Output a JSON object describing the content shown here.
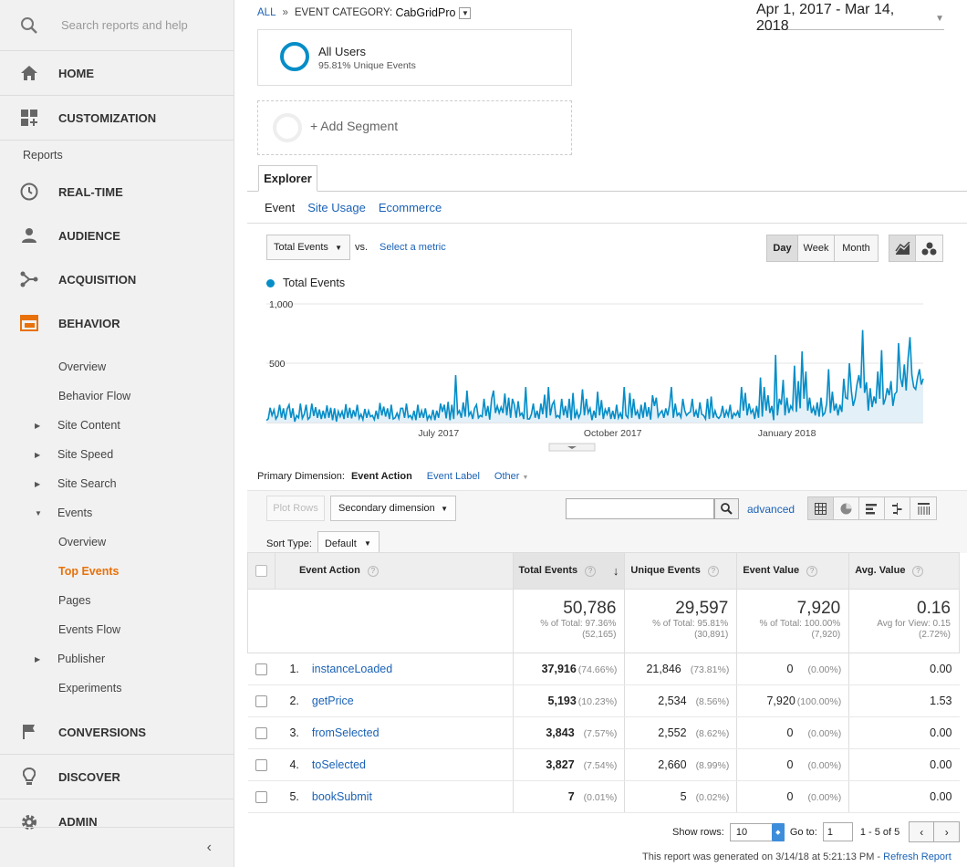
{
  "sidebar": {
    "search_placeholder": "Search reports and help",
    "home": "HOME",
    "customization": "CUSTOMIZATION",
    "reports": "Reports",
    "realtime": "REAL-TIME",
    "audience": "AUDIENCE",
    "acquisition": "ACQUISITION",
    "behavior": "BEHAVIOR",
    "behavior_items": [
      "Overview",
      "Behavior Flow",
      "Site Content",
      "Site Speed",
      "Site Search",
      "Events"
    ],
    "events_items": [
      "Overview",
      "Top Events",
      "Pages",
      "Events Flow"
    ],
    "publisher": "Publisher",
    "experiments": "Experiments",
    "conversions": "CONVERSIONS",
    "discover": "DISCOVER",
    "admin": "ADMIN",
    "collapse": "‹"
  },
  "breadcrumb": {
    "all": "ALL",
    "sep": "»",
    "category_label": "EVENT CATEGORY:",
    "category": "CabGridPro"
  },
  "date_range": "Apr 1, 2017 - Mar 14, 2018",
  "segment": {
    "name": "All Users",
    "sub": "95.81% Unique Events",
    "add": "+ Add Segment"
  },
  "tabs": {
    "explorer": "Explorer",
    "event": "Event",
    "site_usage": "Site Usage",
    "ecommerce": "Ecommerce"
  },
  "controls": {
    "metric": "Total Events",
    "vs": "vs.",
    "select_metric": "Select a metric",
    "day": "Day",
    "week": "Week",
    "month": "Month"
  },
  "chart_data": {
    "type": "line",
    "series": [
      {
        "name": "Total Events"
      }
    ],
    "yticks": [
      "1,000",
      "500"
    ],
    "xticks": [
      "July 2017",
      "October 2017",
      "January 2018"
    ],
    "ylim": [
      0,
      1000
    ],
    "x_range": [
      "2017-04-01",
      "2018-03-14"
    ],
    "xtick_dates": [
      "2017-07-01",
      "2017-10-01",
      "2018-01-01"
    ],
    "values": [
      18,
      32,
      125,
      60,
      108,
      30,
      55,
      150,
      40,
      120,
      25,
      115,
      150,
      40,
      120,
      8,
      60,
      40,
      160,
      35,
      70,
      150,
      28,
      45,
      160,
      55,
      130,
      40,
      110,
      30,
      100,
      35,
      145,
      40,
      125,
      20,
      120,
      8,
      95,
      50,
      95,
      30,
      155,
      40,
      125,
      35,
      105,
      50,
      150,
      35,
      70,
      25,
      115,
      40,
      100,
      50,
      60,
      25,
      100,
      30,
      165,
      60,
      135,
      50,
      120,
      30,
      150,
      30,
      40,
      80,
      35,
      120,
      120,
      40,
      160,
      45,
      60,
      30,
      100,
      20,
      150,
      40,
      100,
      40,
      120,
      25,
      60,
      30,
      108,
      20,
      100,
      40,
      160,
      90,
      150,
      35,
      175,
      20,
      150,
      30,
      400,
      75,
      100,
      40,
      170,
      50,
      270,
      60,
      90,
      30,
      120,
      150,
      40,
      60,
      50,
      200,
      55,
      140,
      25,
      200,
      270,
      80,
      140,
      80,
      130,
      80,
      245,
      60,
      210,
      40,
      200,
      150,
      40,
      180,
      60,
      80,
      30,
      300,
      30,
      30,
      70,
      160,
      40,
      100,
      30,
      160,
      70,
      235,
      40,
      300,
      60,
      150,
      180,
      45,
      60,
      40,
      200,
      60,
      140,
      40,
      200,
      20,
      250,
      35,
      100,
      40,
      80,
      280,
      60,
      200,
      80,
      120,
      20,
      100,
      40,
      260,
      60,
      190,
      30,
      110,
      70,
      130,
      30,
      100,
      30,
      150,
      40,
      80,
      30,
      300,
      60,
      40,
      250,
      40,
      200,
      60,
      100,
      30,
      150,
      40,
      170,
      50,
      130,
      25,
      230,
      140,
      210,
      50,
      80,
      100,
      40,
      120,
      60,
      150,
      300,
      40,
      160,
      60,
      80,
      45,
      200,
      100,
      60,
      80,
      90,
      200,
      50,
      100,
      40,
      170,
      70,
      60,
      30,
      200,
      30,
      220,
      40,
      100,
      50,
      35,
      60,
      140,
      40,
      100,
      55,
      150,
      30,
      80,
      60,
      95,
      40,
      300,
      100,
      250,
      60,
      160,
      80,
      110,
      30,
      140,
      40,
      380,
      50,
      300,
      100,
      230,
      80,
      140,
      20,
      570,
      60,
      200,
      150,
      360,
      60,
      210,
      80,
      140,
      110,
      480,
      90,
      350,
      120,
      600,
      200,
      430,
      100,
      210,
      80,
      130,
      60,
      170,
      50,
      210,
      60,
      80,
      160,
      450,
      80,
      260,
      100,
      160,
      60,
      150,
      90,
      370,
      210,
      200,
      500,
      270,
      140,
      200,
      320,
      400,
      290,
      780,
      250,
      340,
      100,
      290,
      130,
      220,
      160,
      430,
      200,
      610,
      150,
      200,
      290,
      230,
      350,
      140,
      240,
      260,
      670,
      380,
      300,
      490,
      270,
      540,
      720,
      400,
      300,
      280,
      380,
      450,
      320,
      370
    ]
  },
  "primary_dimension": {
    "label": "Primary Dimension:",
    "active": "Event Action",
    "event_label": "Event Label",
    "other": "Other"
  },
  "table_controls": {
    "plot_rows": "Plot Rows",
    "secondary": "Secondary dimension",
    "advanced": "advanced",
    "sort_type_label": "Sort Type:",
    "sort_type": "Default"
  },
  "table": {
    "headers": [
      "Event Action",
      "Total Events",
      "Unique Events",
      "Event Value",
      "Avg. Value"
    ],
    "totals": [
      {
        "value": "50,786",
        "sub1": "% of Total: 97.36%",
        "sub2": "(52,165)"
      },
      {
        "value": "29,597",
        "sub1": "% of Total: 95.81%",
        "sub2": "(30,891)"
      },
      {
        "value": "7,920",
        "sub1": "% of Total: 100.00%",
        "sub2": "(7,920)"
      },
      {
        "value": "0.16",
        "sub1": "Avg for View: 0.15",
        "sub2": "(2.72%)"
      }
    ],
    "rows": [
      {
        "idx": "1.",
        "action": "instanceLoaded",
        "total": "37,916",
        "total_pct": "(74.66%)",
        "unique": "21,846",
        "unique_pct": "(73.81%)",
        "value": "0",
        "value_pct": "(0.00%)",
        "avg": "0.00"
      },
      {
        "idx": "2.",
        "action": "getPrice",
        "total": "5,193",
        "total_pct": "(10.23%)",
        "unique": "2,534",
        "unique_pct": "(8.56%)",
        "value": "7,920",
        "value_pct": "(100.00%)",
        "avg": "1.53"
      },
      {
        "idx": "3.",
        "action": "fromSelected",
        "total": "3,843",
        "total_pct": "(7.57%)",
        "unique": "2,552",
        "unique_pct": "(8.62%)",
        "value": "0",
        "value_pct": "(0.00%)",
        "avg": "0.00"
      },
      {
        "idx": "4.",
        "action": "toSelected",
        "total": "3,827",
        "total_pct": "(7.54%)",
        "unique": "2,660",
        "unique_pct": "(8.99%)",
        "value": "0",
        "value_pct": "(0.00%)",
        "avg": "0.00"
      },
      {
        "idx": "5.",
        "action": "bookSubmit",
        "total": "7",
        "total_pct": "(0.01%)",
        "unique": "5",
        "unique_pct": "(0.02%)",
        "value": "0",
        "value_pct": "(0.00%)",
        "avg": "0.00"
      }
    ]
  },
  "footer": {
    "show_rows": "Show rows:",
    "rows": "10",
    "goto": "Go to:",
    "goto_val": "1",
    "range": "1 - 5 of 5",
    "generated": "This report was generated on 3/14/18 at 5:21:13 PM -",
    "refresh": "Refresh Report"
  },
  "colors": {
    "accent": "#e8710a",
    "line": "#058dc7",
    "link": "#1a62b6"
  }
}
